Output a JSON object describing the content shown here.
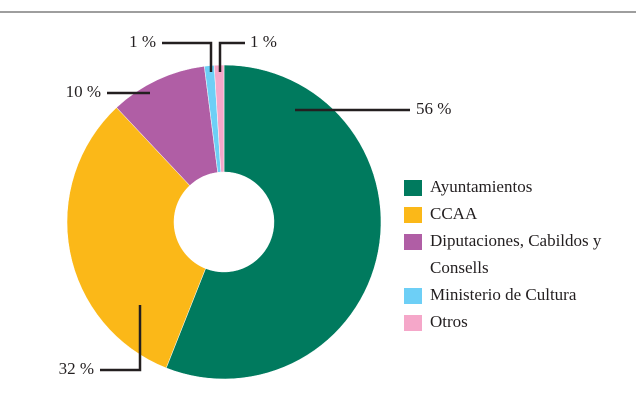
{
  "chart_data": {
    "type": "donut",
    "categories": [
      "Ayuntamientos",
      "CCAA",
      "Diputaciones, Cabildos y Consells",
      "Ministerio de Cultura",
      "Otros"
    ],
    "values": [
      56,
      32,
      10,
      1,
      1
    ],
    "value_labels": [
      "56 %",
      "32 %",
      "10 %",
      "1 %",
      "1 %"
    ],
    "colors": [
      "#007a5e",
      "#fbb818",
      "#b05ea5",
      "#6dcff6",
      "#f5a7c9"
    ],
    "legend": "right"
  }
}
